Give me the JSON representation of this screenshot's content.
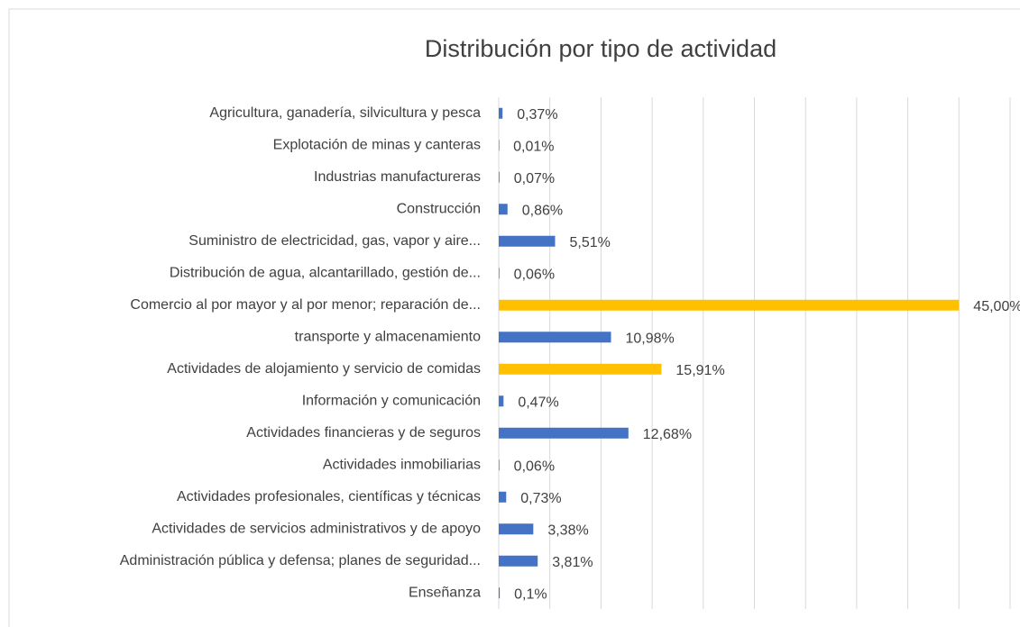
{
  "chart_data": {
    "type": "hbar",
    "title": "Distribución por tipo de actividad",
    "categories": [
      "Agricultura, ganadería, silvicultura y pesca",
      "Explotación de minas y canteras",
      "Industrias manufactureras",
      "Construcción",
      "Suministro de electricidad, gas, vapor y aire...",
      "Distribución de agua, alcantarillado, gestión de...",
      "Comercio al por mayor y al por menor; reparación de...",
      "transporte y almacenamiento",
      "Actividades de alojamiento y servicio de comidas",
      "Información y comunicación",
      "Actividades financieras y de seguros",
      "Actividades inmobiliarias",
      "Actividades profesionales, científicas y técnicas",
      "Actividades de servicios administrativos y de apoyo",
      "Administración pública y defensa; planes de seguridad...",
      "Enseñanza"
    ],
    "values": [
      0.37,
      0.01,
      0.07,
      0.86,
      5.51,
      0.06,
      45.0,
      10.98,
      15.91,
      0.47,
      12.68,
      0.06,
      0.73,
      3.38,
      3.81,
      0.1
    ],
    "value_labels": [
      "0,37%",
      "0,01%",
      "0,07%",
      "0,86%",
      "5,51%",
      "0,06%",
      "45,00%",
      "10,98%",
      "15,91%",
      "0,47%",
      "12,68%",
      "0,06%",
      "0,73%",
      "3,38%",
      "3,81%",
      "0,1%"
    ],
    "colors": [
      "#4472c4",
      "#4472c4",
      "#4472c4",
      "#4472c4",
      "#4472c4",
      "#4472c4",
      "#ffc000",
      "#4472c4",
      "#ffc000",
      "#4472c4",
      "#4472c4",
      "#4472c4",
      "#4472c4",
      "#4472c4",
      "#4472c4",
      "#4472c4"
    ],
    "xlim": [
      0,
      50
    ],
    "xticks": [
      0,
      5,
      10,
      15,
      20,
      25,
      30,
      35,
      40,
      45,
      50
    ],
    "grid": true
  }
}
